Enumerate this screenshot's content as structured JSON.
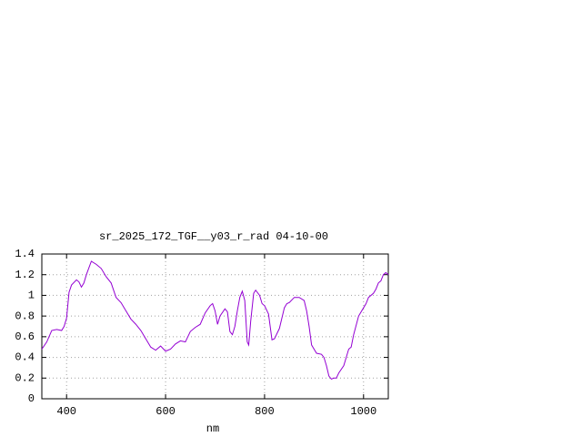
{
  "chart_data": {
    "type": "line",
    "title": "sr_2025_172_TGF__y03_r_rad 04-10-00",
    "x_label": "nm",
    "xlim": [
      350,
      1050
    ],
    "ylim": [
      0,
      1.4
    ],
    "xticks": [
      400,
      600,
      800,
      1000
    ],
    "yticks": [
      0,
      0.2,
      0.4,
      0.6,
      0.8,
      1,
      1.2,
      1.4
    ],
    "grid": true,
    "x": [
      350,
      360,
      370,
      380,
      390,
      395,
      400,
      405,
      410,
      420,
      425,
      430,
      435,
      440,
      450,
      460,
      470,
      480,
      490,
      500,
      510,
      520,
      530,
      540,
      550,
      560,
      570,
      580,
      590,
      600,
      610,
      620,
      630,
      640,
      650,
      660,
      670,
      680,
      690,
      695,
      700,
      705,
      710,
      720,
      725,
      730,
      735,
      740,
      745,
      750,
      755,
      760,
      765,
      768,
      772,
      778,
      782,
      790,
      795,
      800,
      808,
      815,
      820,
      830,
      840,
      845,
      850,
      860,
      870,
      880,
      885,
      890,
      895,
      905,
      915,
      920,
      925,
      930,
      935,
      940,
      945,
      950,
      960,
      970,
      975,
      980,
      990,
      1000,
      1005,
      1010,
      1020,
      1025,
      1030,
      1035,
      1040,
      1045,
      1050
    ],
    "series": [
      {
        "color": "#9400d3",
        "values": [
          0.48,
          0.55,
          0.66,
          0.67,
          0.66,
          0.7,
          0.78,
          1.03,
          1.1,
          1.15,
          1.13,
          1.08,
          1.12,
          1.2,
          1.33,
          1.3,
          1.26,
          1.18,
          1.12,
          0.98,
          0.93,
          0.85,
          0.77,
          0.72,
          0.66,
          0.58,
          0.5,
          0.47,
          0.51,
          0.46,
          0.48,
          0.53,
          0.56,
          0.55,
          0.65,
          0.69,
          0.72,
          0.83,
          0.9,
          0.92,
          0.85,
          0.72,
          0.8,
          0.87,
          0.84,
          0.65,
          0.62,
          0.7,
          0.85,
          0.98,
          1.04,
          0.95,
          0.55,
          0.52,
          0.75,
          1.02,
          1.05,
          1.0,
          0.92,
          0.9,
          0.82,
          0.57,
          0.58,
          0.68,
          0.88,
          0.92,
          0.93,
          0.98,
          0.98,
          0.95,
          0.85,
          0.7,
          0.52,
          0.44,
          0.43,
          0.4,
          0.32,
          0.22,
          0.19,
          0.2,
          0.2,
          0.25,
          0.32,
          0.48,
          0.5,
          0.62,
          0.8,
          0.88,
          0.92,
          0.98,
          1.02,
          1.06,
          1.12,
          1.14,
          1.2,
          1.22,
          1.2
        ]
      }
    ]
  }
}
